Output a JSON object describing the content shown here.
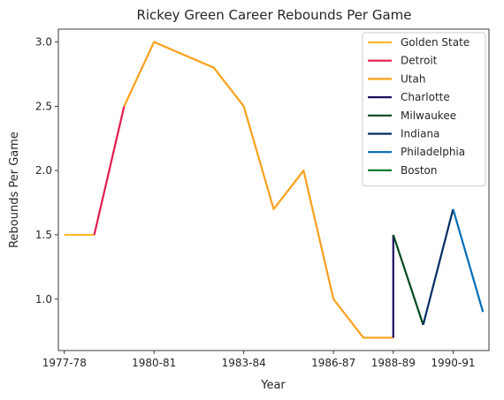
{
  "chart_data": {
    "type": "line",
    "title": "Rickey Green Career Rebounds Per Game",
    "xlabel": "Year",
    "ylabel": "Rebounds Per Game",
    "x_ticks": [
      "1977-78",
      "1980-81",
      "1983-84",
      "1986-87",
      "1988-89",
      "1990-91"
    ],
    "x_tick_positions": [
      1977,
      1980,
      1983,
      1986,
      1988,
      1990
    ],
    "y_ticks": [
      "1.0",
      "1.5",
      "2.0",
      "2.5",
      "3.0"
    ],
    "y_tick_values": [
      1.0,
      1.5,
      2.0,
      2.5,
      3.0
    ],
    "xlim": [
      1976.8,
      1991.2
    ],
    "ylim": [
      0.6,
      3.1
    ],
    "grid": false,
    "legend_position": "top-right",
    "series": [
      {
        "name": "Golden State",
        "color": "#FDB927",
        "x": [
          1977,
          1978
        ],
        "y": [
          1.5,
          1.5
        ]
      },
      {
        "name": "Detroit",
        "color": "#E31B4F",
        "x": [
          1978,
          1979
        ],
        "y": [
          1.5,
          2.5
        ]
      },
      {
        "name": "Utah",
        "color": "#F9A01B",
        "x": [
          1979,
          1980,
          1981,
          1982,
          1983,
          1984,
          1985,
          1986,
          1987,
          1988
        ],
        "y": [
          2.5,
          3.0,
          2.9,
          2.8,
          2.5,
          1.7,
          2.0,
          1.0,
          0.7,
          0.7
        ]
      },
      {
        "name": "Charlotte",
        "color": "#1D1160",
        "x": [
          1988,
          1988
        ],
        "y": [
          0.7,
          1.5
        ]
      },
      {
        "name": "Milwaukee",
        "color": "#00471B",
        "x": [
          1988,
          1989
        ],
        "y": [
          1.5,
          0.8
        ]
      },
      {
        "name": "Indiana",
        "color": "#002D62",
        "x": [
          1989,
          1990
        ],
        "y": [
          0.8,
          1.7
        ]
      },
      {
        "name": "Philadelphia",
        "color": "#006BB6",
        "x": [
          1990,
          1991
        ],
        "y": [
          1.7,
          0.9
        ]
      },
      {
        "name": "Boston",
        "color": "#007A33",
        "x": [],
        "y": []
      }
    ]
  }
}
